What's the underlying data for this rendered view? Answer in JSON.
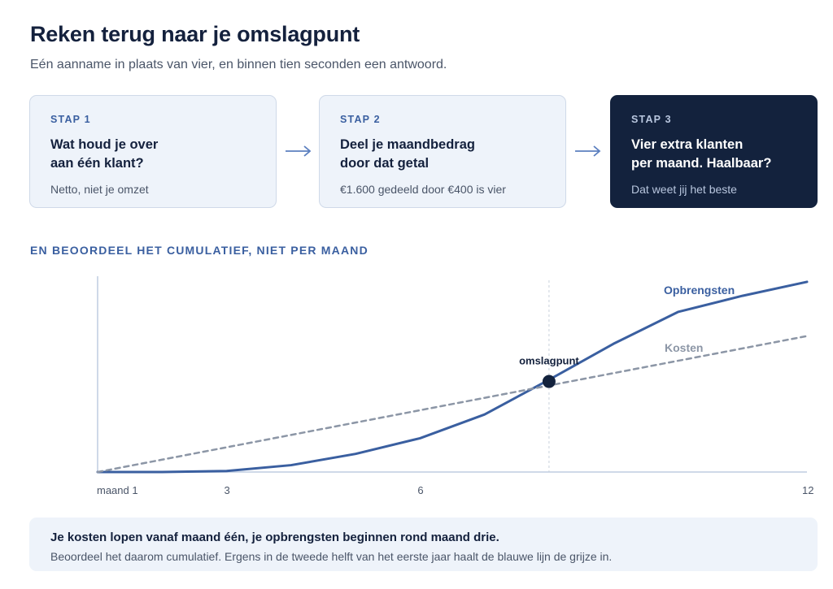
{
  "header": {
    "title": "Reken terug naar je omslagpunt",
    "subtitle": "Eén aanname in plaats van vier, en binnen tien seconden een antwoord."
  },
  "steps": [
    {
      "label": "STAP 1",
      "heading": "Wat houd je over\naan één klant?",
      "note": "Netto, niet je omzet"
    },
    {
      "label": "STAP 2",
      "heading": "Deel je maandbedrag\ndoor dat getal",
      "note": "€1.600 gedeeld door €400 is vier"
    },
    {
      "label": "STAP 3",
      "heading": "Vier extra klanten\nper maand. Haalbaar?",
      "note": "Dat weet jij het beste"
    }
  ],
  "section_title": "EN BEOORDEEL HET CUMULATIEF, NIET PER MAAND",
  "chart_data": {
    "type": "line",
    "x": [
      1,
      2,
      3,
      4,
      5,
      6,
      7,
      8,
      9,
      10,
      11,
      12
    ],
    "x_tick_labels": [
      {
        "x": 1,
        "label": "maand 1"
      },
      {
        "x": 3,
        "label": "3"
      },
      {
        "x": 6,
        "label": "6"
      },
      {
        "x": 12,
        "label": "12"
      }
    ],
    "series": [
      {
        "name": "Opbrengsten",
        "color": "#3a5fa0",
        "style": "solid",
        "values": [
          0,
          0,
          0.4,
          2.8,
          7.4,
          13.8,
          23.5,
          37.7,
          52.4,
          65.4,
          72.0,
          77.7
        ]
      },
      {
        "name": "Kosten",
        "color": "#8c96a6",
        "style": "dashed",
        "values": [
          0,
          5.05,
          10.1,
          15.15,
          20.2,
          25.25,
          30.3,
          35.35,
          40.4,
          45.45,
          50.5,
          55.55
        ]
      }
    ],
    "annotation": {
      "label": "omslagpunt",
      "x": 8,
      "y": 37
    },
    "ylim": [
      0,
      80
    ],
    "grid": false,
    "legend": "inline at line ends"
  },
  "callout": {
    "title": "Je kosten lopen vanaf maand één, je opbrengsten beginnen rond maand drie.",
    "text": "Beoordeel het daarom cumulatief. Ergens in de tweede helft van het eerste jaar haalt de blauwe lijn de grijze in."
  }
}
